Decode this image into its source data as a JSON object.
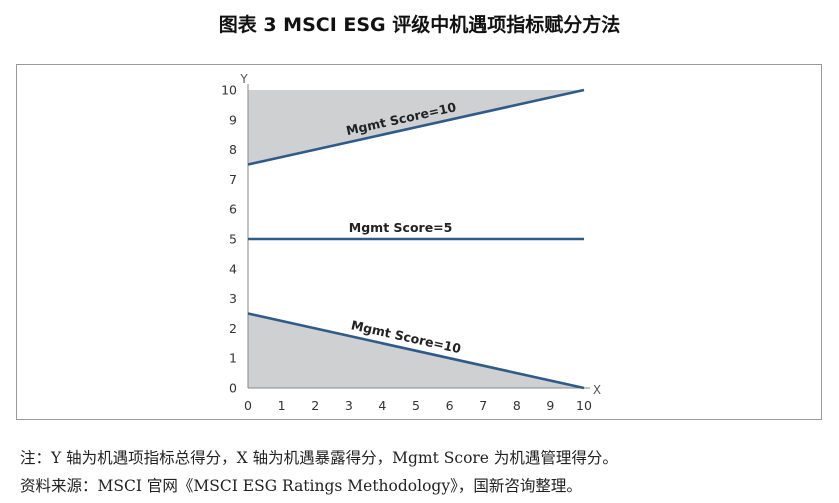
{
  "title": "图表 3 MSCI ESG 评级中机遇项指标赋分方法",
  "notes": {
    "line1": "注：Y 轴为机遇项指标总得分，X 轴为机遇暴露得分，Mgmt Score 为机遇管理得分。",
    "line2": "资料来源：MSCI 官网《MSCI ESG Ratings Methodology》，国新咨询整理。"
  },
  "chart_data": {
    "type": "line",
    "xlabel": "X",
    "ylabel": "Y",
    "xlim": [
      0,
      10
    ],
    "ylim": [
      0,
      10
    ],
    "xticks": [
      0,
      1,
      2,
      3,
      4,
      5,
      6,
      7,
      8,
      9,
      10
    ],
    "yticks": [
      0,
      1,
      2,
      3,
      4,
      5,
      6,
      7,
      8,
      9,
      10
    ],
    "grid": false,
    "series": [
      {
        "name": "Mgmt Score=10",
        "x": [
          0,
          10
        ],
        "y": [
          7.5,
          10
        ],
        "fill": "above"
      },
      {
        "name": "Mgmt Score=5",
        "x": [
          0,
          10
        ],
        "y": [
          5,
          5
        ],
        "fill": "none"
      },
      {
        "name": "Mgmt Score=10",
        "x": [
          0,
          10
        ],
        "y": [
          2.5,
          0
        ],
        "fill": "below"
      }
    ],
    "colors": {
      "line": "#2e5b8a",
      "fill": "#cfd0d2"
    }
  }
}
